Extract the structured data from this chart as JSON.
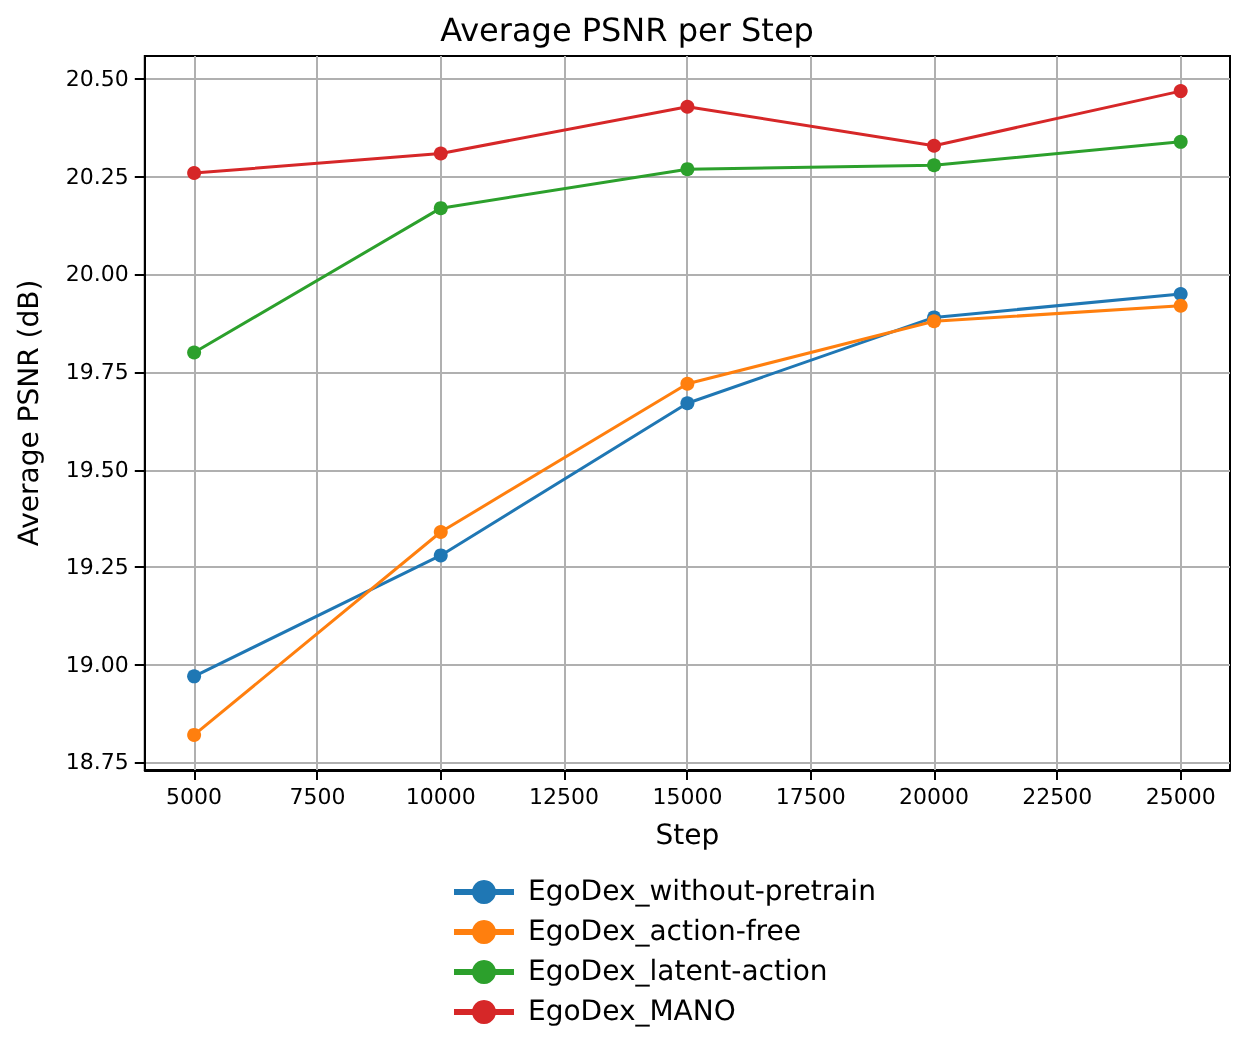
{
  "chart_data": {
    "type": "line",
    "title": "Average PSNR per Step",
    "xlabel": "Step",
    "ylabel": "Average PSNR (dB)",
    "x": [
      5000,
      10000,
      15000,
      20000,
      25000
    ],
    "series": [
      {
        "name": "EgoDex_without-pretrain",
        "color": "#1f77b4",
        "values": [
          18.97,
          19.28,
          19.67,
          19.89,
          19.95
        ]
      },
      {
        "name": "EgoDex_action-free",
        "color": "#ff7f0e",
        "values": [
          18.82,
          19.34,
          19.72,
          19.88,
          19.92
        ]
      },
      {
        "name": "EgoDex_latent-action",
        "color": "#2ca02c",
        "values": [
          19.8,
          20.17,
          20.27,
          20.28,
          20.34
        ]
      },
      {
        "name": "EgoDex_MANO",
        "color": "#d62728",
        "values": [
          20.26,
          20.31,
          20.43,
          20.33,
          20.47
        ]
      }
    ],
    "xlim": [
      4000,
      26000
    ],
    "xticks": [
      5000,
      7500,
      10000,
      12500,
      15000,
      17500,
      20000,
      22500,
      25000
    ],
    "ylim": [
      18.73,
      20.56
    ],
    "yticks": [
      {
        "value": 18.75,
        "label": "18.75"
      },
      {
        "value": 19,
        "label": "19.00"
      },
      {
        "value": 19.25,
        "label": "19.25"
      },
      {
        "value": 19.5,
        "label": "19.50"
      },
      {
        "value": 19.75,
        "label": "19.75"
      },
      {
        "value": 20,
        "label": "20.00"
      },
      {
        "value": 20.25,
        "label": "20.25"
      },
      {
        "value": 20.5,
        "label": "20.50"
      }
    ],
    "grid": true,
    "legend": "bottom",
    "marker": "circle",
    "line_style": "solid"
  }
}
